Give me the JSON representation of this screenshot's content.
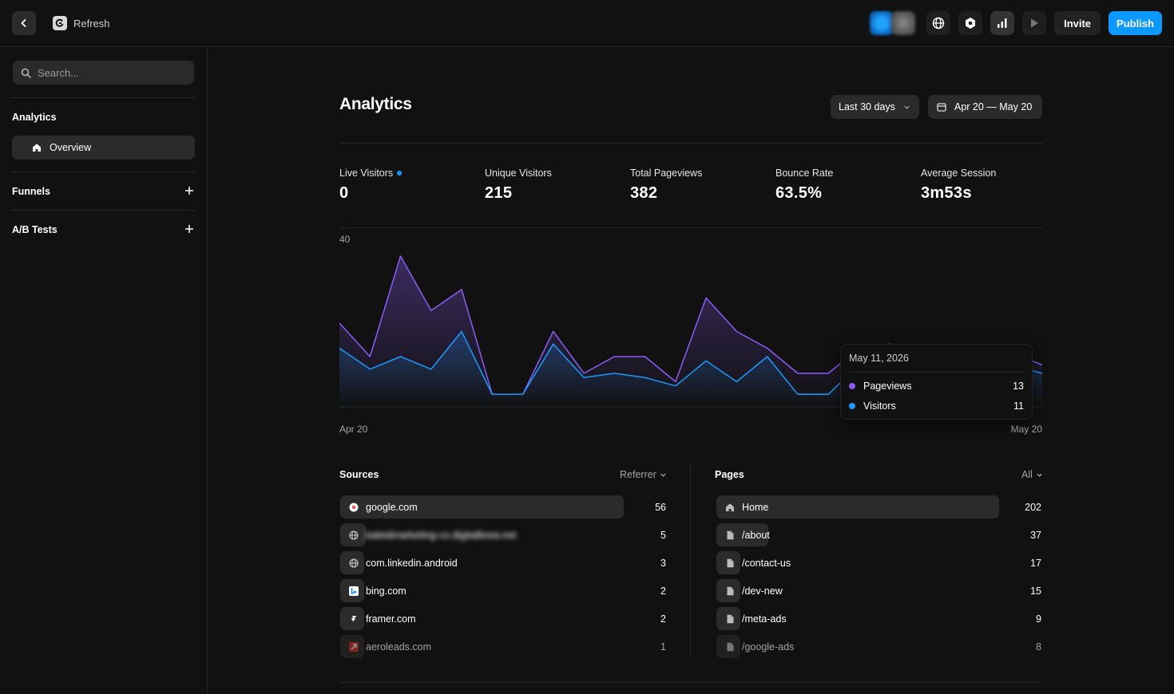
{
  "topbar": {
    "refresh_label": "Refresh",
    "invite_label": "Invite",
    "publish_label": "Publish",
    "accent": "#0b99ff"
  },
  "sidebar": {
    "search_placeholder": "Search...",
    "sections": {
      "analytics": "Analytics",
      "overview": "Overview",
      "funnels": "Funnels",
      "ab_tests": "A/B Tests"
    }
  },
  "main": {
    "title": "Analytics",
    "range_label": "Last 30 days",
    "date_label": "Apr 20 — May 20",
    "stats": [
      {
        "label": "Live Visitors",
        "value": "0"
      },
      {
        "label": "Unique Visitors",
        "value": "215"
      },
      {
        "label": "Total Pageviews",
        "value": "382"
      },
      {
        "label": "Bounce Rate",
        "value": "63.5%"
      },
      {
        "label": "Average Session",
        "value": "3m53s"
      }
    ]
  },
  "chart_data": {
    "type": "area",
    "ymax_label": "40",
    "ylim": [
      0,
      40
    ],
    "x_start_label": "Apr 20",
    "x_end_label": "May 20",
    "series": [
      {
        "name": "Pageviews",
        "color": "#8b5cf6",
        "values": [
          20,
          12,
          36,
          23,
          28,
          3,
          3,
          18,
          8,
          12,
          12,
          6,
          26,
          18,
          14,
          8,
          8,
          14,
          15,
          7,
          4,
          12,
          13,
          10
        ]
      },
      {
        "name": "Visitors",
        "color": "#1a9bff",
        "values": [
          14,
          9,
          12,
          9,
          18,
          3,
          3,
          15,
          7,
          8,
          7,
          5,
          11,
          6,
          12,
          3,
          3,
          10,
          10,
          4,
          4,
          11,
          10,
          8
        ]
      }
    ],
    "tooltip": {
      "date": "May 11, 2026",
      "rows": [
        {
          "name": "Pageviews",
          "value": "13"
        },
        {
          "name": "Visitors",
          "value": "11"
        }
      ]
    }
  },
  "sources": {
    "title": "Sources",
    "filter": "Referrer",
    "max": 56,
    "rows": [
      {
        "icon": "google-icon",
        "label": "google.com",
        "count": 56
      },
      {
        "icon": "globe-icon",
        "label": "kaleidmarketing-co.digitalbrew.net",
        "count": 5
      },
      {
        "icon": "globe-icon",
        "label": "com.linkedin.android",
        "count": 3
      },
      {
        "icon": "bing-icon",
        "label": "bing.com",
        "count": 2
      },
      {
        "icon": "framer-icon",
        "label": "framer.com",
        "count": 2
      },
      {
        "icon": "aeroleads-icon",
        "label": "aeroleads.com",
        "count": 1
      }
    ]
  },
  "pages": {
    "title": "Pages",
    "filter": "All",
    "max": 202,
    "rows": [
      {
        "icon": "home-icon",
        "label": "Home",
        "count": 202
      },
      {
        "icon": "file-icon",
        "label": "/about",
        "count": 37
      },
      {
        "icon": "file-icon",
        "label": "/contact-us",
        "count": 17
      },
      {
        "icon": "file-icon",
        "label": "/dev-new",
        "count": 15
      },
      {
        "icon": "file-icon",
        "label": "/meta-ads",
        "count": 9
      },
      {
        "icon": "file-icon",
        "label": "/google-ads",
        "count": 8
      }
    ]
  }
}
